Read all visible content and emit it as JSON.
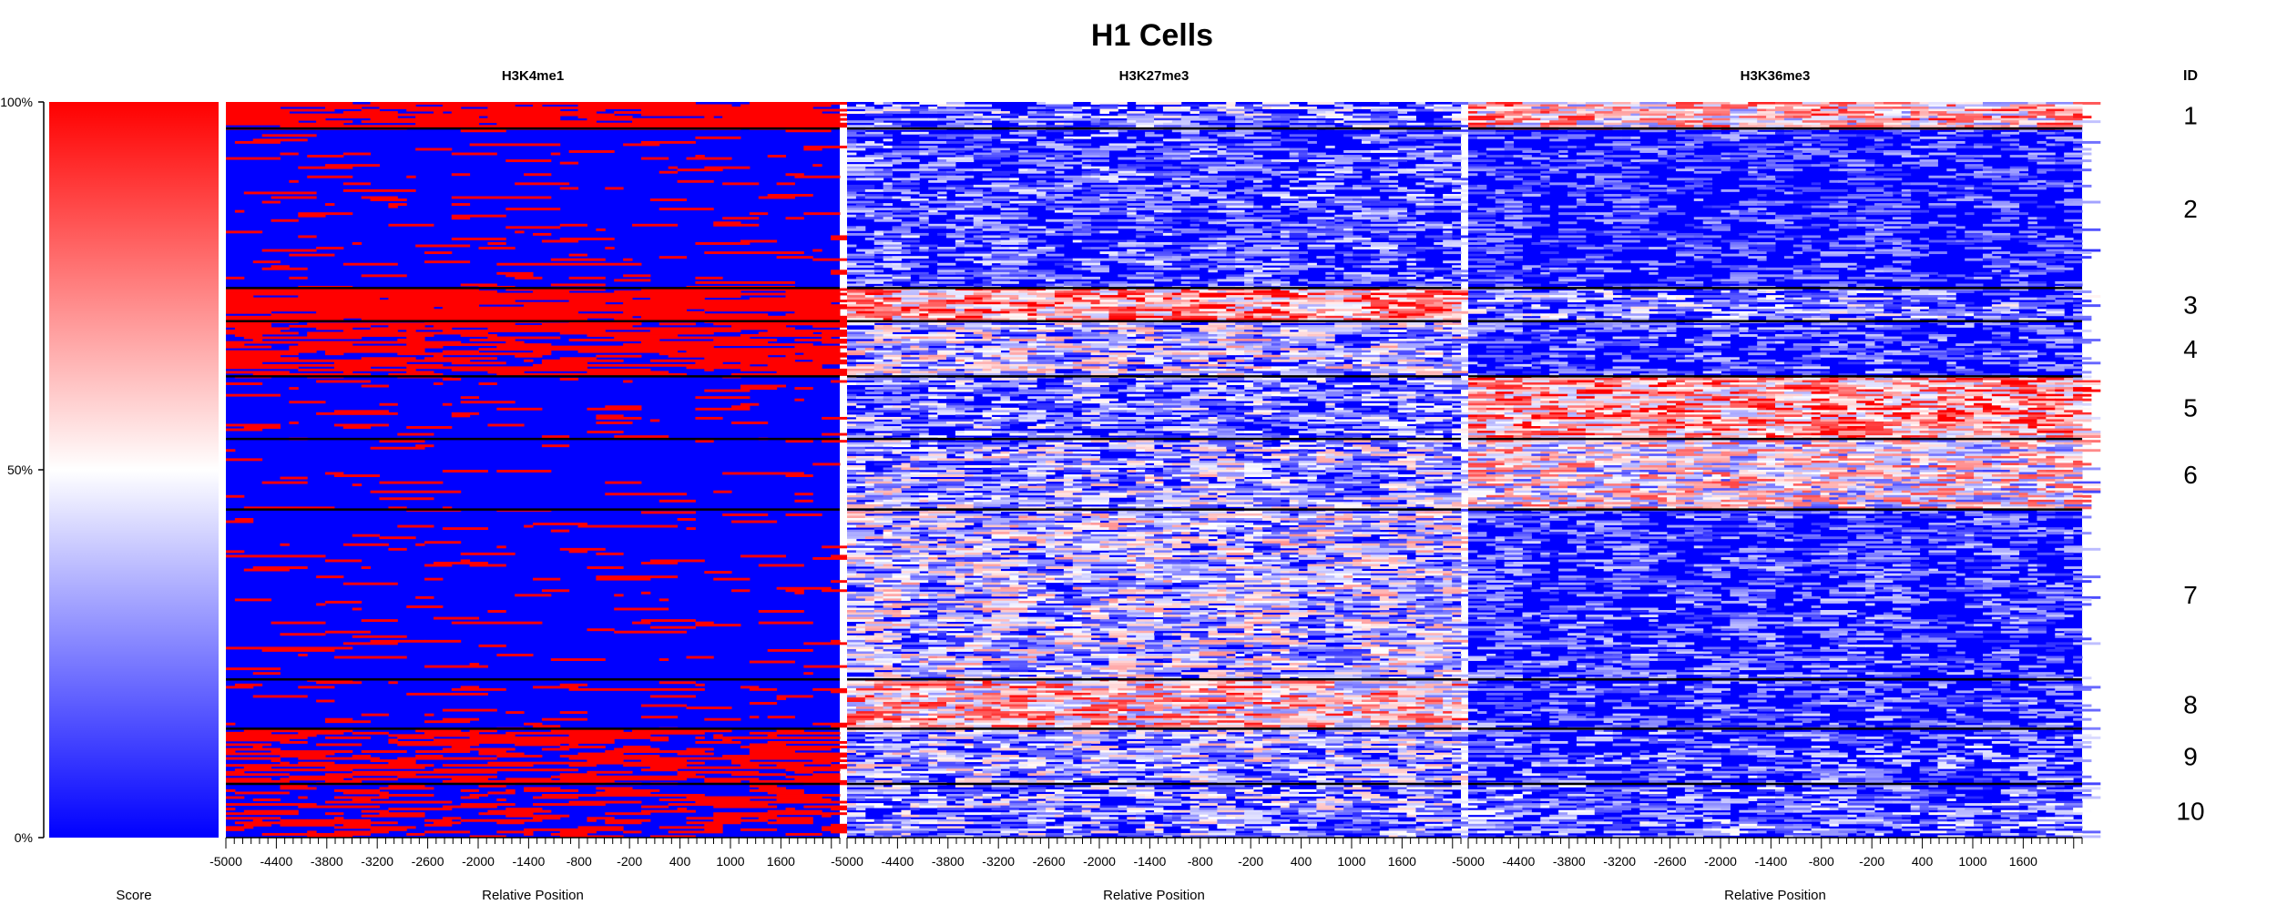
{
  "chart_data": {
    "type": "heatmap",
    "title": "H1 Cells",
    "panels": [
      {
        "name": "H3K4me1",
        "cluster_profile": [
          0.85,
          0.1,
          0.85,
          0.72,
          0.1,
          0.07,
          0.07,
          0.12,
          0.55,
          0.35
        ],
        "pattern": "solid"
      },
      {
        "name": "H3K27me3",
        "cluster_profile": [
          0.35,
          0.25,
          0.85,
          0.5,
          0.35,
          0.45,
          0.5,
          0.75,
          0.45,
          0.4
        ],
        "pattern": "speckled"
      },
      {
        "name": "H3K36me3",
        "cluster_profile": [
          0.75,
          0.15,
          0.35,
          0.2,
          0.85,
          0.65,
          0.2,
          0.2,
          0.25,
          0.3
        ],
        "pattern": "speckled"
      }
    ],
    "cluster_ids": [
      "1",
      "2",
      "3",
      "4",
      "5",
      "6",
      "7",
      "8",
      "9",
      "10"
    ],
    "cluster_bounds_percent": [
      100,
      96.4,
      74.7,
      70.2,
      62.7,
      54.2,
      44.6,
      21.5,
      14.8,
      7.3,
      0
    ],
    "x_ticks": [
      "-5000",
      "-4400",
      "-3800",
      "-3200",
      "-2600",
      "-2000",
      "-1400",
      "-800",
      "-200",
      "400",
      "1000",
      "1600"
    ],
    "x_min": -5000,
    "x_max": 2300,
    "xlabel": "Relative Position",
    "id_label": "ID",
    "colorbar": {
      "label": "Score",
      "ticks": [
        "100%",
        "50%",
        "0%"
      ],
      "tick_values": [
        100,
        50,
        0
      ]
    },
    "colors": {
      "low": "#0000FF",
      "mid": "#FFFFFF",
      "high": "#FF0000",
      "separator": "#000000"
    }
  }
}
